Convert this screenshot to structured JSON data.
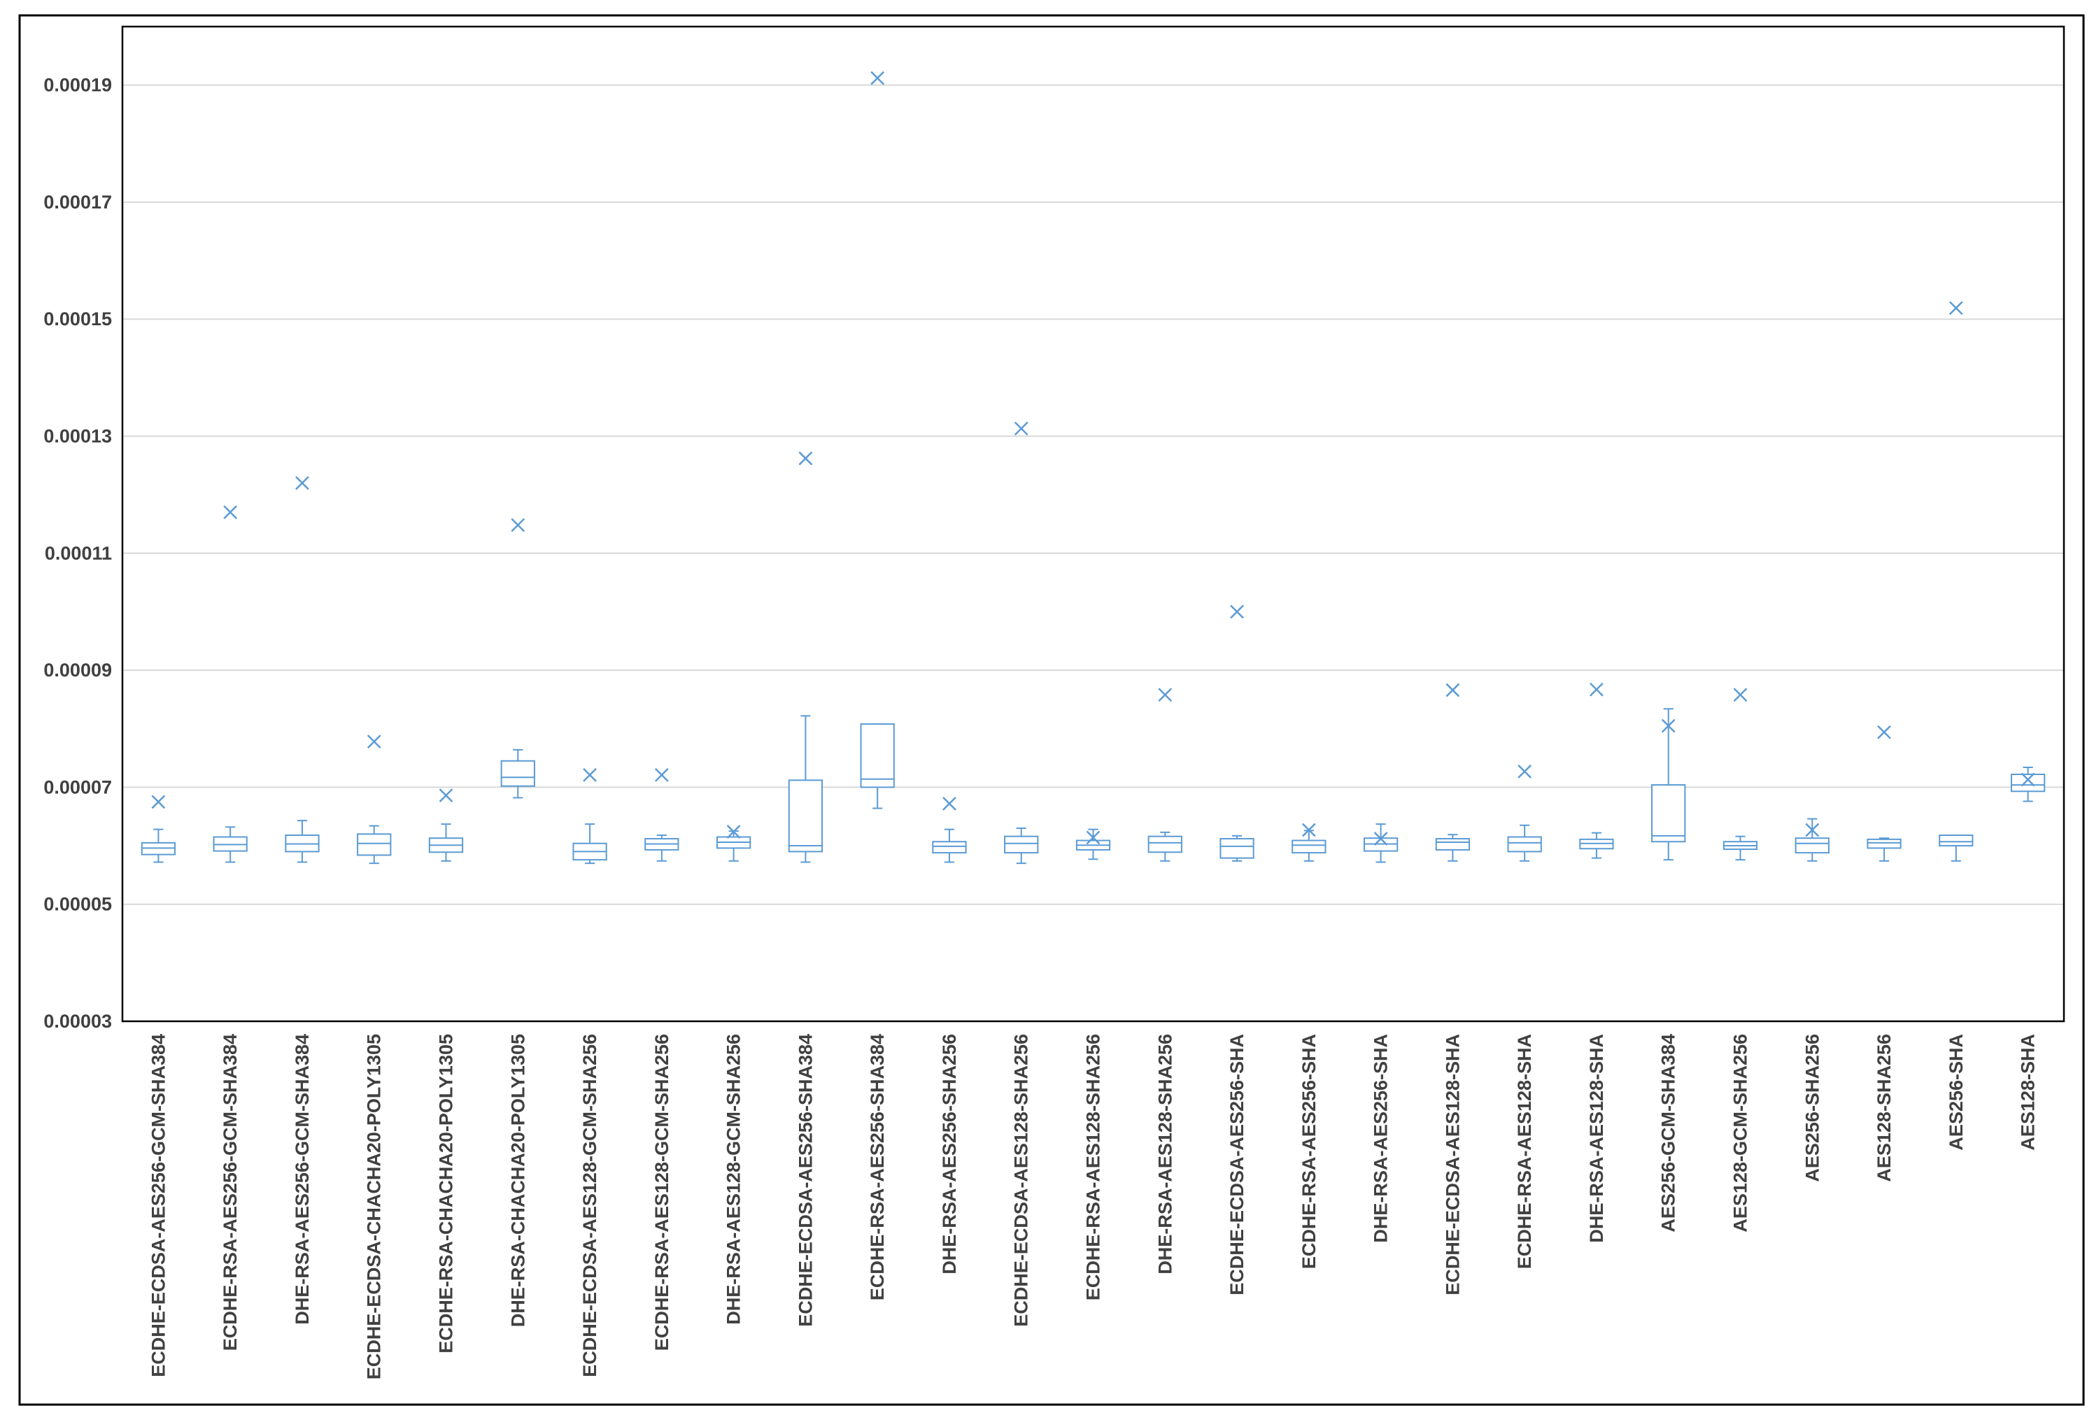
{
  "colors": {
    "series": "#5b9bd5",
    "grid": "#d9d9d9",
    "axis_text": "#404040",
    "plot_border": "#000000"
  },
  "chart_data": {
    "type": "box",
    "title": "",
    "xlabel": "",
    "ylabel": "",
    "ylim": [
      3e-05,
      0.0002
    ],
    "yticks": [
      "0.00003",
      "0.00005",
      "0.00007",
      "0.00009",
      "0.00011",
      "0.00013",
      "0.00015",
      "0.00017",
      "0.00019"
    ],
    "grid": true,
    "legend": "none",
    "categories": [
      "ECDHE-ECDSA-AES256-GCM-SHA384",
      "ECDHE-RSA-AES256-GCM-SHA384",
      "DHE-RSA-AES256-GCM-SHA384",
      "ECDHE-ECDSA-CHACHA20-POLY1305",
      "ECDHE-RSA-CHACHA20-POLY1305",
      "DHE-RSA-CHACHA20-POLY1305",
      "ECDHE-ECDSA-AES128-GCM-SHA256",
      "ECDHE-RSA-AES128-GCM-SHA256",
      "DHE-RSA-AES128-GCM-SHA256",
      "ECDHE-ECDSA-AES256-SHA384",
      "ECDHE-RSA-AES256-SHA384",
      "DHE-RSA-AES256-SHA256",
      "ECDHE-ECDSA-AES128-SHA256",
      "ECDHE-RSA-AES128-SHA256",
      "DHE-RSA-AES128-SHA256",
      "ECDHE-ECDSA-AES256-SHA",
      "ECDHE-RSA-AES256-SHA",
      "DHE-RSA-AES256-SHA",
      "ECDHE-ECDSA-AES128-SHA",
      "ECDHE-RSA-AES128-SHA",
      "DHE-RSA-AES128-SHA",
      "AES256-GCM-SHA384",
      "AES128-GCM-SHA256",
      "AES256-SHA256",
      "AES128-SHA256",
      "AES256-SHA",
      "AES128-SHA"
    ],
    "boxes": [
      {
        "whisker_low": 5.72e-05,
        "q1": 5.85e-05,
        "median": 5.96e-05,
        "q3": 6.05e-05,
        "whisker_high": 6.28e-05,
        "mean": 6.75e-05
      },
      {
        "whisker_low": 5.72e-05,
        "q1": 5.91e-05,
        "median": 6.02e-05,
        "q3": 6.15e-05,
        "whisker_high": 6.32e-05,
        "mean": 0.000117
      },
      {
        "whisker_low": 5.72e-05,
        "q1": 5.9e-05,
        "median": 6.03e-05,
        "q3": 6.18e-05,
        "whisker_high": 6.43e-05,
        "mean": 0.000122
      },
      {
        "whisker_low": 5.7e-05,
        "q1": 5.84e-05,
        "median": 6.04e-05,
        "q3": 6.2e-05,
        "whisker_high": 6.34e-05,
        "mean": 7.78e-05
      },
      {
        "whisker_low": 5.74e-05,
        "q1": 5.89e-05,
        "median": 6.01e-05,
        "q3": 6.13e-05,
        "whisker_high": 6.37e-05,
        "mean": 6.86e-05
      },
      {
        "whisker_low": 6.82e-05,
        "q1": 7.02e-05,
        "median": 7.17e-05,
        "q3": 7.45e-05,
        "whisker_high": 7.64e-05,
        "mean": 0.0001148
      },
      {
        "whisker_low": 5.7e-05,
        "q1": 5.76e-05,
        "median": 5.9e-05,
        "q3": 6.04e-05,
        "whisker_high": 6.37e-05,
        "mean": 7.21e-05
      },
      {
        "whisker_low": 5.74e-05,
        "q1": 5.93e-05,
        "median": 6.03e-05,
        "q3": 6.12e-05,
        "whisker_high": 6.18e-05,
        "mean": 7.21e-05
      },
      {
        "whisker_low": 5.74e-05,
        "q1": 5.96e-05,
        "median": 6.06e-05,
        "q3": 6.15e-05,
        "whisker_high": 6.25e-05,
        "mean": 6.24e-05
      },
      {
        "whisker_low": 5.72e-05,
        "q1": 5.9e-05,
        "median": 6e-05,
        "q3": 7.12e-05,
        "whisker_high": 8.22e-05,
        "mean": 0.0001262
      },
      {
        "whisker_low": 6.64e-05,
        "q1": 7e-05,
        "median": 7.14e-05,
        "q3": 8.08e-05,
        "whisker_high": 8.08e-05,
        "mean": 0.0001912
      },
      {
        "whisker_low": 5.72e-05,
        "q1": 5.88e-05,
        "median": 5.99e-05,
        "q3": 6.07e-05,
        "whisker_high": 6.28e-05,
        "mean": 6.72e-05
      },
      {
        "whisker_low": 5.7e-05,
        "q1": 5.88e-05,
        "median": 6.04e-05,
        "q3": 6.16e-05,
        "whisker_high": 6.3e-05,
        "mean": 0.0001313
      },
      {
        "whisker_low": 5.77e-05,
        "q1": 5.93e-05,
        "median": 6.01e-05,
        "q3": 6.09e-05,
        "whisker_high": 6.28e-05,
        "mean": 6.14e-05
      },
      {
        "whisker_low": 5.74e-05,
        "q1": 5.89e-05,
        "median": 6.05e-05,
        "q3": 6.16e-05,
        "whisker_high": 6.23e-05,
        "mean": 8.58e-05
      },
      {
        "whisker_low": 5.74e-05,
        "q1": 5.79e-05,
        "median": 5.99e-05,
        "q3": 6.12e-05,
        "whisker_high": 6.17e-05,
        "mean": 0.0001
      },
      {
        "whisker_low": 5.74e-05,
        "q1": 5.88e-05,
        "median": 6.01e-05,
        "q3": 6.09e-05,
        "whisker_high": 6.26e-05,
        "mean": 6.27e-05
      },
      {
        "whisker_low": 5.72e-05,
        "q1": 5.91e-05,
        "median": 6.03e-05,
        "q3": 6.13e-05,
        "whisker_high": 6.37e-05,
        "mean": 6.12e-05
      },
      {
        "whisker_low": 5.74e-05,
        "q1": 5.93e-05,
        "median": 6.06e-05,
        "q3": 6.12e-05,
        "whisker_high": 6.19e-05,
        "mean": 8.66e-05
      },
      {
        "whisker_low": 5.74e-05,
        "q1": 5.9e-05,
        "median": 6.05e-05,
        "q3": 6.15e-05,
        "whisker_high": 6.35e-05,
        "mean": 7.27e-05
      },
      {
        "whisker_low": 5.79e-05,
        "q1": 5.95e-05,
        "median": 6.04e-05,
        "q3": 6.11e-05,
        "whisker_high": 6.22e-05,
        "mean": 8.67e-05
      },
      {
        "whisker_low": 5.76e-05,
        "q1": 6.07e-05,
        "median": 6.17e-05,
        "q3": 7.04e-05,
        "whisker_high": 8.34e-05,
        "mean": 8.05e-05
      },
      {
        "whisker_low": 5.76e-05,
        "q1": 5.94e-05,
        "median": 6e-05,
        "q3": 6.07e-05,
        "whisker_high": 6.16e-05,
        "mean": 8.58e-05
      },
      {
        "whisker_low": 5.74e-05,
        "q1": 5.88e-05,
        "median": 6.04e-05,
        "q3": 6.13e-05,
        "whisker_high": 6.46e-05,
        "mean": 6.27e-05
      },
      {
        "whisker_low": 5.74e-05,
        "q1": 5.96e-05,
        "median": 6.05e-05,
        "q3": 6.11e-05,
        "whisker_high": 6.13e-05,
        "mean": 7.94e-05
      },
      {
        "whisker_low": 5.74e-05,
        "q1": 6e-05,
        "median": 6.07e-05,
        "q3": 6.18e-05,
        "whisker_high": 6.18e-05,
        "mean": 0.0001519
      },
      {
        "whisker_low": 6.76e-05,
        "q1": 6.93e-05,
        "median": 7.04e-05,
        "q3": 7.22e-05,
        "whisker_high": 7.34e-05,
        "mean": 7.13e-05
      }
    ]
  }
}
